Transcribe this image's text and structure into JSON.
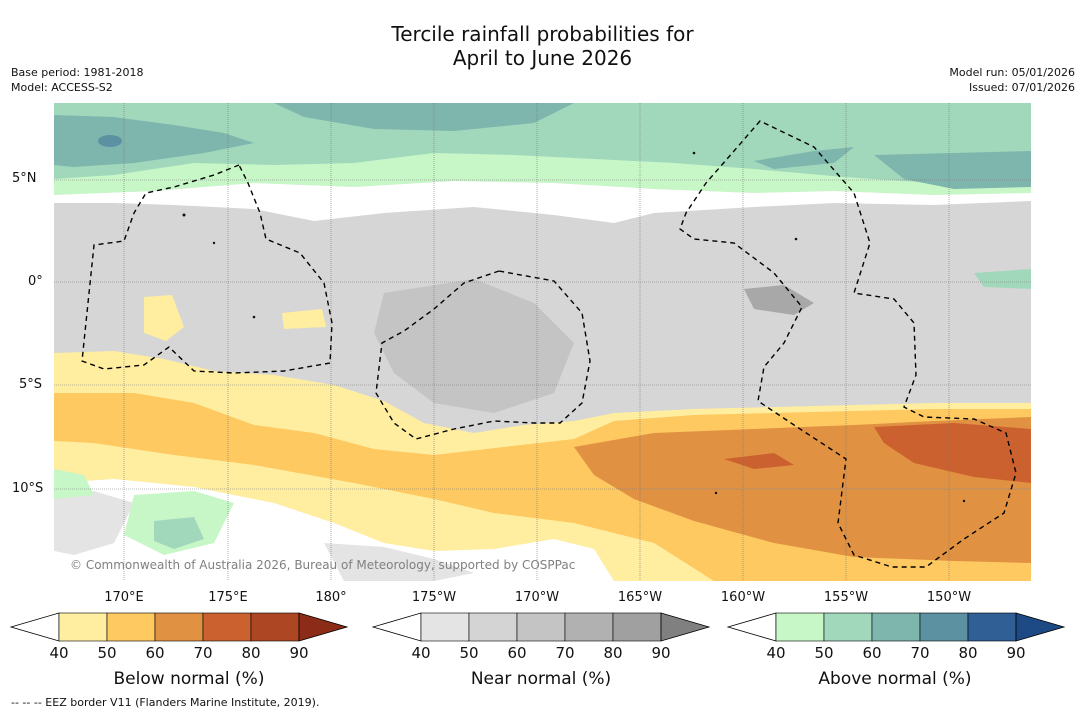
{
  "title_line1": "Tercile rainfall probabilities for",
  "title_line2": "April to June 2026",
  "meta_left": {
    "base_period": "Base period: 1981-2018",
    "model": "Model: ACCESS-S2"
  },
  "meta_right": {
    "model_run": "Model run: 05/01/2026",
    "issued": "Issued: 07/01/2026"
  },
  "lat_ticks": [
    "5°N",
    "0°",
    "5°S",
    "10°S"
  ],
  "lon_ticks": [
    "170°E",
    "175°E",
    "180°",
    "175°W",
    "170°W",
    "165°W",
    "160°W",
    "155°W",
    "150°W"
  ],
  "copyright": "© Commonwealth of Australia 2026, Bureau of Meteorology, supported by COSPPac",
  "colorbars": [
    {
      "label": "Below normal (%)",
      "ticks": [
        "40",
        "50",
        "60",
        "70",
        "80",
        "90"
      ],
      "colors": [
        "#ffeda0",
        "#fec960",
        "#e19142",
        "#cc6130",
        "#ad4723",
        "#8c2c18"
      ]
    },
    {
      "label": "Near normal (%)",
      "ticks": [
        "40",
        "50",
        "60",
        "70",
        "80",
        "90"
      ],
      "colors": [
        "#e4e4e4",
        "#d4d4d4",
        "#c4c4c4",
        "#b1b1b1",
        "#a0a0a0",
        "#808080"
      ]
    },
    {
      "label": "Above normal (%)",
      "ticks": [
        "40",
        "50",
        "60",
        "70",
        "80",
        "90"
      ],
      "colors": [
        "#c7f7c7",
        "#a1d8bc",
        "#7eb5ad",
        "#5b91a1",
        "#2f5f95",
        "#1d4a84"
      ]
    }
  ],
  "footnote": "--  --  -- EEZ border V11 (Flanders Marine Institute, 2019)."
}
